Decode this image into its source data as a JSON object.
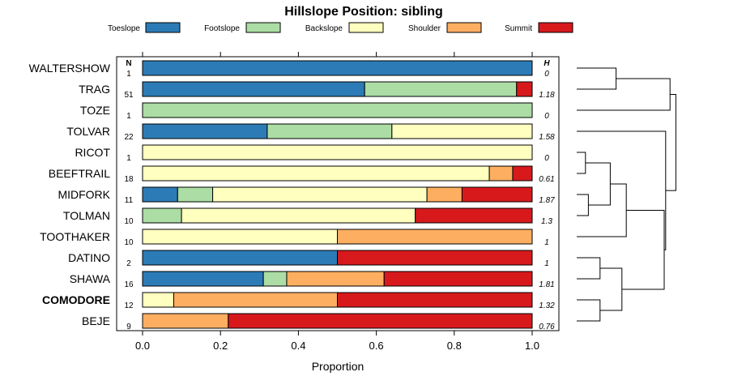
{
  "chart_data": {
    "type": "bar",
    "orientation": "horizontal-stacked",
    "title": "Hillslope Position: sibling",
    "xlabel": "Proportion",
    "xlim": [
      0,
      1
    ],
    "x_ticks": [
      "0.0",
      "0.2",
      "0.4",
      "0.6",
      "0.8",
      "1.0"
    ],
    "x_tick_values": [
      0,
      0.2,
      0.4,
      0.6,
      0.8,
      1.0
    ],
    "n_header": "N",
    "h_header": "H",
    "highlight_category": "COMODORE",
    "legend": {
      "placement": "top",
      "entries": [
        {
          "name": "Toeslope",
          "color": "#2c7bb6"
        },
        {
          "name": "Footslope",
          "color": "#abdda4"
        },
        {
          "name": "Backslope",
          "color": "#ffffbf"
        },
        {
          "name": "Shoulder",
          "color": "#fdae61"
        },
        {
          "name": "Summit",
          "color": "#d7191c"
        }
      ]
    },
    "categories": [
      "WALTERSHOW",
      "TRAG",
      "TOZE",
      "TOLVAR",
      "RICOT",
      "BEEFTRAIL",
      "MIDFORK",
      "TOLMAN",
      "TOOTHAKER",
      "DATINO",
      "SHAWA",
      "COMODORE",
      "BEJE"
    ],
    "n": [
      "1",
      "51",
      "1",
      "22",
      "1",
      "18",
      "11",
      "10",
      "10",
      "2",
      "16",
      "12",
      "9"
    ],
    "h": [
      "0",
      "1.18",
      "0",
      "1.58",
      "0",
      "0.61",
      "1.87",
      "1.3",
      "1",
      "1",
      "1.81",
      "1.32",
      "0.76"
    ],
    "series": [
      {
        "name": "Toeslope",
        "values": [
          1.0,
          0.57,
          0.0,
          0.32,
          0.0,
          0.0,
          0.09,
          0.0,
          0.0,
          0.5,
          0.31,
          0.0,
          0.0
        ]
      },
      {
        "name": "Footslope",
        "values": [
          0.0,
          0.39,
          1.0,
          0.32,
          0.0,
          0.0,
          0.09,
          0.1,
          0.0,
          0.0,
          0.06,
          0.0,
          0.0
        ]
      },
      {
        "name": "Backslope",
        "values": [
          0.0,
          0.0,
          0.0,
          0.36,
          1.0,
          0.89,
          0.55,
          0.6,
          0.5,
          0.0,
          0.0,
          0.08,
          0.0
        ]
      },
      {
        "name": "Shoulder",
        "values": [
          0.0,
          0.0,
          0.0,
          0.0,
          0.0,
          0.06,
          0.09,
          0.0,
          0.5,
          0.0,
          0.25,
          0.42,
          0.22
        ]
      },
      {
        "name": "Summit",
        "values": [
          0.0,
          0.04,
          0.0,
          0.0,
          0.0,
          0.05,
          0.18,
          0.3,
          0.0,
          0.5,
          0.38,
          0.5,
          0.78
        ]
      }
    ],
    "dendrogram": {
      "leaf_order": [
        "WALTERSHOW",
        "TRAG",
        "TOZE",
        "TOLVAR",
        "RICOT",
        "BEEFTRAIL",
        "MIDFORK",
        "TOLMAN",
        "TOOTHAKER",
        "DATINO",
        "SHAWA",
        "COMODORE",
        "BEJE"
      ],
      "merges": [
        {
          "a": "L0",
          "b": "L1",
          "height": 0.27
        },
        {
          "a": "M0",
          "b": "L2",
          "height": 0.64
        },
        {
          "a": "L4",
          "b": "L5",
          "height": 0.06
        },
        {
          "a": "L6",
          "b": "L7",
          "height": 0.08
        },
        {
          "a": "M2",
          "b": "M3",
          "height": 0.23
        },
        {
          "a": "M4",
          "b": "L8",
          "height": 0.34
        },
        {
          "a": "L9",
          "b": "L10",
          "height": 0.16
        },
        {
          "a": "L11",
          "b": "L12",
          "height": 0.16
        },
        {
          "a": "M6",
          "b": "M7",
          "height": 0.31
        },
        {
          "a": "M5",
          "b": "M8",
          "height": 0.6
        },
        {
          "a": "L3",
          "b": "M9",
          "height": 0.61
        },
        {
          "a": "M1",
          "b": "M10",
          "height": 0.68
        }
      ]
    }
  }
}
